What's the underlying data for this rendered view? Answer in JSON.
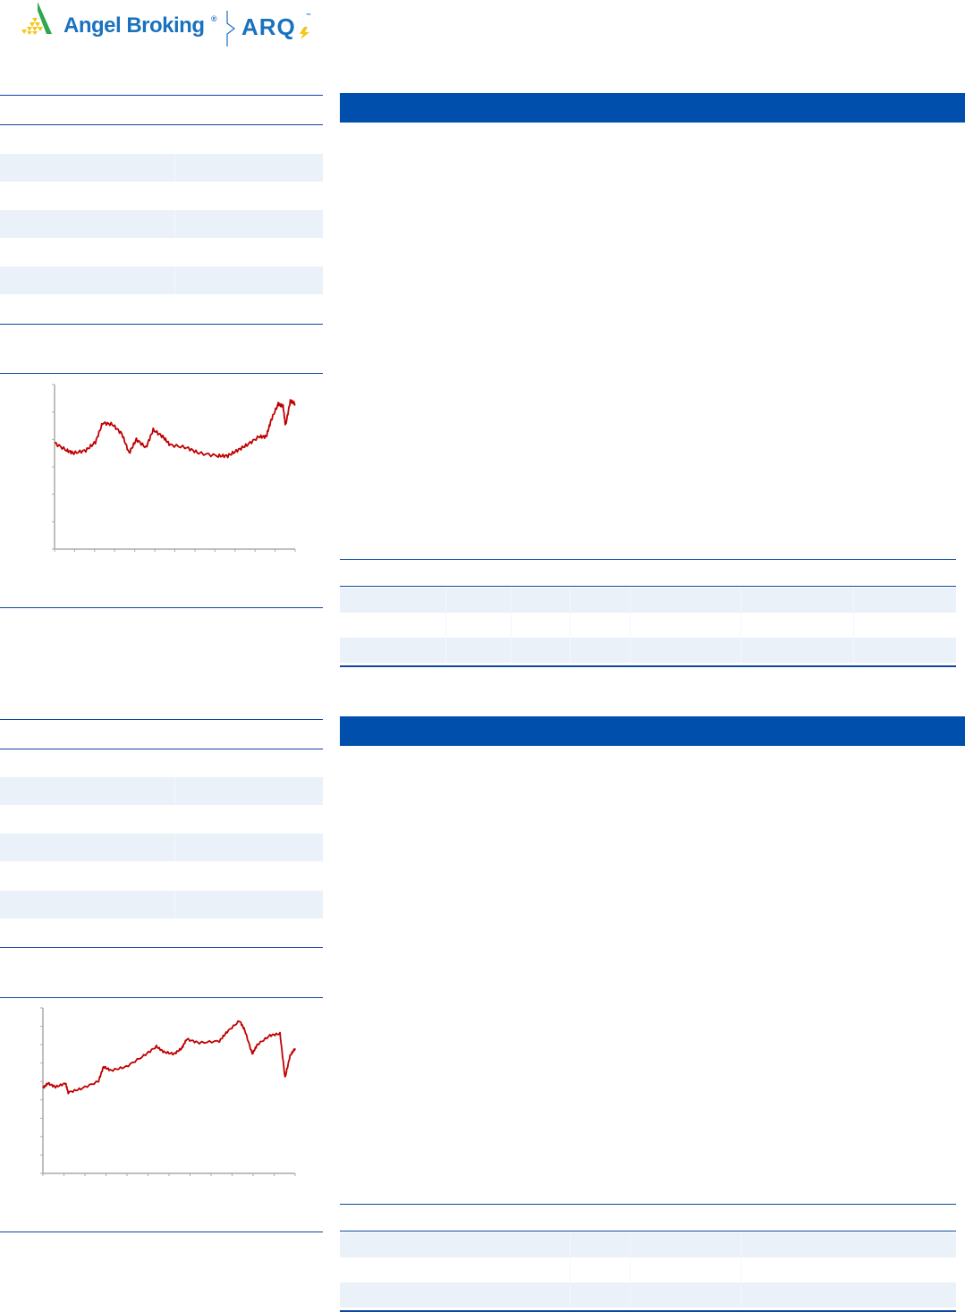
{
  "logo": {
    "brand": "Angel Broking",
    "registered_mark": "®",
    "product": "ARQ",
    "trademark": "™",
    "colors": {
      "brand_blue": "#1a72bf",
      "triangle_green": "#2ea84a",
      "triangle_yellow": "#f5c518"
    }
  },
  "colors": {
    "accent": "#004fac",
    "rule": "#0d47a1",
    "stripe": "#eaf1f8",
    "line": "#c00000"
  },
  "chart_data": [
    {
      "type": "line",
      "title": "",
      "xlabel": "",
      "ylabel": "",
      "y_tick_count": 7,
      "x_tick_count": 13,
      "ylim": [
        0,
        6
      ],
      "grid": false,
      "series": [
        {
          "x": [
            0,
            0.05,
            0.08,
            0.13,
            0.17,
            0.2,
            0.24,
            0.28,
            0.31,
            0.34,
            0.38,
            0.41,
            0.45,
            0.48,
            0.55,
            0.6,
            0.68,
            0.72,
            0.76,
            0.8,
            0.85,
            0.88,
            0.9,
            0.93,
            0.95,
            0.96,
            0.98,
            1.0
          ],
          "values": [
            3.87,
            3.6,
            3.5,
            3.6,
            3.9,
            4.6,
            4.55,
            4.2,
            3.5,
            4.0,
            3.7,
            4.35,
            4.1,
            3.8,
            3.7,
            3.5,
            3.4,
            3.4,
            3.6,
            3.8,
            4.1,
            4.1,
            4.7,
            5.3,
            5.2,
            4.5,
            5.4,
            5.3
          ]
        }
      ]
    },
    {
      "type": "line",
      "title": "",
      "xlabel": "",
      "ylabel": "",
      "y_tick_count": 10,
      "x_tick_count": 13,
      "ylim": [
        0,
        9
      ],
      "grid": false,
      "series": [
        {
          "x": [
            0,
            0.02,
            0.05,
            0.09,
            0.1,
            0.15,
            0.22,
            0.24,
            0.27,
            0.33,
            0.4,
            0.45,
            0.48,
            0.52,
            0.55,
            0.57,
            0.62,
            0.7,
            0.73,
            0.78,
            0.8,
            0.83,
            0.85,
            0.9,
            0.94,
            0.96,
            0.98,
            1.0
          ],
          "values": [
            4.65,
            4.9,
            4.7,
            4.9,
            4.4,
            4.6,
            5.0,
            5.8,
            5.6,
            5.8,
            6.4,
            6.9,
            6.6,
            6.5,
            6.8,
            7.3,
            7.1,
            7.2,
            7.7,
            8.3,
            7.8,
            6.5,
            7.0,
            7.5,
            7.6,
            5.2,
            6.4,
            6.8
          ]
        }
      ]
    }
  ]
}
